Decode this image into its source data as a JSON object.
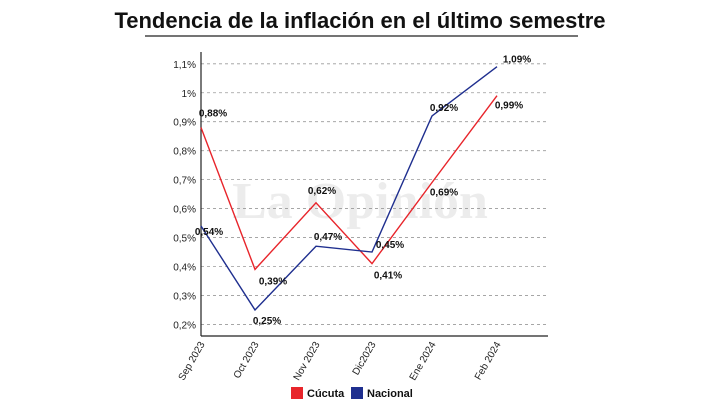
{
  "title": "Tendencia de la inflación en el último semestre",
  "watermark": "La Opinión",
  "colors": {
    "cucuta": "#e8252b",
    "nacional": "#1f2f8f",
    "grid": "#9a9a9a",
    "axis": "#222222"
  },
  "chart_data": {
    "type": "line",
    "title": "Tendencia de la inflación en el último semestre",
    "categories": [
      "Sep 2023",
      "Oct 2023",
      "Nov 2023",
      "Dic2023",
      "Ene 2024",
      "Feb 2024"
    ],
    "y_ticks": [
      {
        "value": 0.2,
        "label": "0,2%"
      },
      {
        "value": 0.3,
        "label": "0,3%"
      },
      {
        "value": 0.4,
        "label": "0,4%"
      },
      {
        "value": 0.5,
        "label": "0,5%"
      },
      {
        "value": 0.6,
        "label": "0,6%"
      },
      {
        "value": 0.7,
        "label": "0,7%"
      },
      {
        "value": 0.8,
        "label": "0,8%"
      },
      {
        "value": 0.9,
        "label": "0,9%"
      },
      {
        "value": 1.0,
        "label": "1%"
      },
      {
        "value": 1.1,
        "label": "1,1%"
      }
    ],
    "ylim": [
      0.16,
      1.12
    ],
    "grid": true,
    "legend_position": "bottom-center",
    "series": [
      {
        "name": "Cúcuta",
        "color": "#e8252b",
        "values": [
          0.88,
          0.39,
          0.62,
          0.41,
          0.69,
          0.99
        ],
        "labels": [
          "0,88%",
          "0,39%",
          "0,62%",
          "0,41%",
          "0,69%",
          "0,99%"
        ]
      },
      {
        "name": "Nacional",
        "color": "#1f2f8f",
        "values": [
          0.54,
          0.25,
          0.47,
          0.45,
          0.92,
          1.09
        ],
        "labels": [
          "0,54%",
          "0,25%",
          "0,47%",
          "0,45%",
          "0,92%",
          "1,09%"
        ]
      }
    ]
  }
}
